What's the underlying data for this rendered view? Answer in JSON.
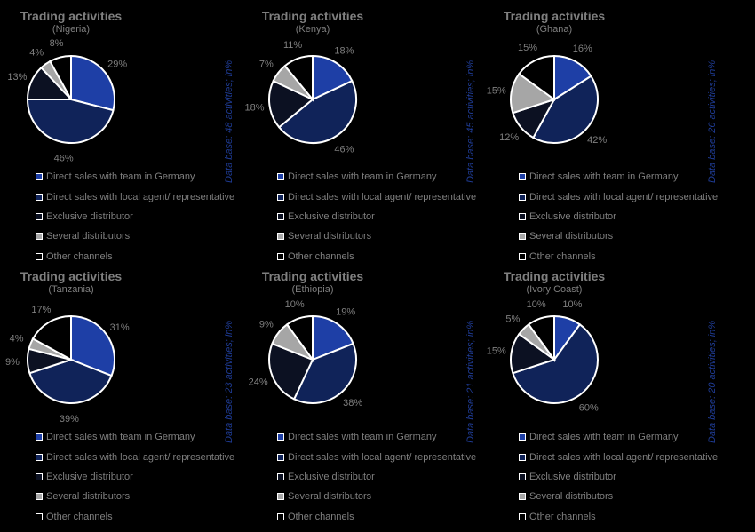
{
  "legend": {
    "labels": [
      "Direct sales with team in Germany",
      "Direct sales with local agent/ representative",
      "Exclusive distributor",
      "Several distributors",
      "Other channels"
    ],
    "colors": [
      "#1e3fa6",
      "#102359",
      "#0c1122",
      "#a6a6a6",
      "#000000"
    ]
  },
  "chart_data": [
    {
      "type": "pie",
      "title": "Trading activities",
      "subtitle": "(Nigeria)",
      "note": "Data base: 48 activities; in%",
      "categories": [
        "Direct sales with team in Germany",
        "Direct sales with local agent/ representative",
        "Exclusive distributor",
        "Several distributors",
        "Other channels"
      ],
      "values": [
        29,
        46,
        13,
        4,
        8
      ],
      "labels": [
        "29%",
        "46%",
        "13%",
        "4%",
        "8%"
      ]
    },
    {
      "type": "pie",
      "title": "Trading activities",
      "subtitle": "(Kenya)",
      "note": "Data base: 45 activities; in%",
      "categories": [
        "Direct sales with team in Germany",
        "Direct sales with local agent/ representative",
        "Exclusive distributor",
        "Several distributors",
        "Other channels"
      ],
      "values": [
        18,
        46,
        18,
        7,
        11
      ],
      "labels": [
        "18%",
        "46%",
        "18%",
        "7%",
        "11%"
      ]
    },
    {
      "type": "pie",
      "title": "Trading activities",
      "subtitle": "(Ghana)",
      "note": "Data base: 26 activities; in%",
      "categories": [
        "Direct sales with team in Germany",
        "Direct sales with local agent/ representative",
        "Exclusive distributor",
        "Several distributors",
        "Other channels"
      ],
      "values": [
        16,
        42,
        12,
        15,
        15
      ],
      "labels": [
        "16%",
        "42%",
        "12%",
        "15%",
        "15%"
      ]
    },
    {
      "type": "pie",
      "title": "Trading activities",
      "subtitle": "(Tanzania)",
      "note": "Data base: 23 activities; in%",
      "categories": [
        "Direct sales with team in Germany",
        "Direct sales with local agent/ representative",
        "Exclusive distributor",
        "Several distributors",
        "Other channels"
      ],
      "values": [
        31,
        39,
        9,
        4,
        17
      ],
      "labels": [
        "31%",
        "39%",
        "9%",
        "4%",
        "17%"
      ]
    },
    {
      "type": "pie",
      "title": "Trading activities",
      "subtitle": "(Ethiopia)",
      "note": "Data base: 21 activities; in%",
      "categories": [
        "Direct sales with team in Germany",
        "Direct sales with local agent/ representative",
        "Exclusive distributor",
        "Several distributors",
        "Other channels"
      ],
      "values": [
        19,
        38,
        24,
        9,
        10
      ],
      "labels": [
        "19%",
        "38%",
        "24%",
        "9%",
        "10%"
      ]
    },
    {
      "type": "pie",
      "title": "Trading activities",
      "subtitle": "(Ivory Coast)",
      "note": "Data base: 20 activities; in%",
      "categories": [
        "Direct sales with team in Germany",
        "Direct sales with local agent/ representative",
        "Exclusive distributor",
        "Several distributors",
        "Other channels"
      ],
      "values": [
        10,
        60,
        15,
        5,
        10
      ],
      "labels": [
        "10%",
        "60%",
        "15%",
        "5%",
        "10%"
      ]
    }
  ]
}
